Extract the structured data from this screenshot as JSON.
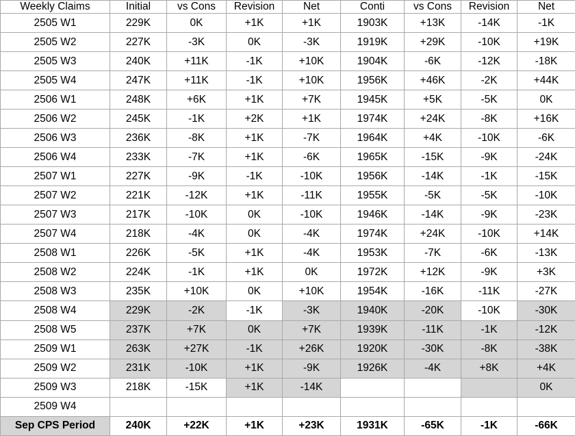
{
  "table": {
    "headers": [
      "Weekly Claims",
      "Initial",
      "vs Cons",
      "Revision",
      "Net",
      "Conti",
      "vs Cons",
      "Revision",
      "Net"
    ],
    "rows": [
      {
        "label": "2505 W1",
        "cells": [
          "229K",
          "0K",
          "+1K",
          "+1K",
          "1903K",
          "+13K",
          "-14K",
          "-1K"
        ]
      },
      {
        "label": "2505 W2",
        "cells": [
          "227K",
          "-3K",
          "0K",
          "-3K",
          "1919K",
          "+29K",
          "-10K",
          "+19K"
        ]
      },
      {
        "label": "2505 W3",
        "cells": [
          "240K",
          "+11K",
          "-1K",
          "+10K",
          "1904K",
          "-6K",
          "-12K",
          "-18K"
        ]
      },
      {
        "label": "2505 W4",
        "cells": [
          "247K",
          "+11K",
          "-1K",
          "+10K",
          "1956K",
          "+46K",
          "-2K",
          "+44K"
        ]
      },
      {
        "label": "2506 W1",
        "cells": [
          "248K",
          "+6K",
          "+1K",
          "+7K",
          "1945K",
          "+5K",
          "-5K",
          "0K"
        ]
      },
      {
        "label": "2506 W2",
        "cells": [
          "245K",
          "-1K",
          "+2K",
          "+1K",
          "1974K",
          "+24K",
          "-8K",
          "+16K"
        ]
      },
      {
        "label": "2506 W3",
        "cells": [
          "236K",
          "-8K",
          "+1K",
          "-7K",
          "1964K",
          "+4K",
          "-10K",
          "-6K"
        ]
      },
      {
        "label": "2506 W4",
        "cells": [
          "233K",
          "-7K",
          "+1K",
          "-6K",
          "1965K",
          "-15K",
          "-9K",
          "-24K"
        ]
      },
      {
        "label": "2507 W1",
        "cells": [
          "227K",
          "-9K",
          "-1K",
          "-10K",
          "1956K",
          "-14K",
          "-1K",
          "-15K"
        ]
      },
      {
        "label": "2507 W2",
        "cells": [
          "221K",
          "-12K",
          "+1K",
          "-11K",
          "1955K",
          "-5K",
          "-5K",
          "-10K"
        ]
      },
      {
        "label": "2507 W3",
        "cells": [
          "217K",
          "-10K",
          "0K",
          "-10K",
          "1946K",
          "-14K",
          "-9K",
          "-23K"
        ]
      },
      {
        "label": "2507 W4",
        "cells": [
          "218K",
          "-4K",
          "0K",
          "-4K",
          "1974K",
          "+24K",
          "-10K",
          "+14K"
        ]
      },
      {
        "label": "2508 W1",
        "cells": [
          "226K",
          "-5K",
          "+1K",
          "-4K",
          "1953K",
          "-7K",
          "-6K",
          "-13K"
        ]
      },
      {
        "label": "2508 W2",
        "cells": [
          "224K",
          "-1K",
          "+1K",
          "0K",
          "1972K",
          "+12K",
          "-9K",
          "+3K"
        ]
      },
      {
        "label": "2508 W3",
        "cells": [
          "235K",
          "+10K",
          "0K",
          "+10K",
          "1954K",
          "-16K",
          "-11K",
          "-27K"
        ]
      },
      {
        "label": "2508 W4",
        "cells": [
          "229K",
          "-2K",
          "-1K",
          "-3K",
          "1940K",
          "-20K",
          "-10K",
          "-30K"
        ],
        "shaded": [
          1,
          1,
          0,
          1,
          1,
          1,
          0,
          1
        ]
      },
      {
        "label": "2508 W5",
        "cells": [
          "237K",
          "+7K",
          "0K",
          "+7K",
          "1939K",
          "-11K",
          "-1K",
          "-12K"
        ],
        "shaded": [
          1,
          1,
          1,
          1,
          1,
          1,
          1,
          1
        ]
      },
      {
        "label": "2509 W1",
        "cells": [
          "263K",
          "+27K",
          "-1K",
          "+26K",
          "1920K",
          "-30K",
          "-8K",
          "-38K"
        ],
        "shaded": [
          1,
          1,
          1,
          1,
          1,
          1,
          1,
          1
        ]
      },
      {
        "label": "2509 W2",
        "cells": [
          "231K",
          "-10K",
          "+1K",
          "-9K",
          "1926K",
          "-4K",
          "+8K",
          "+4K"
        ],
        "shaded": [
          1,
          1,
          1,
          1,
          1,
          1,
          1,
          1
        ]
      },
      {
        "label": "2509 W3",
        "cells": [
          "218K",
          "-15K",
          "+1K",
          "-14K",
          "",
          "",
          "",
          "0K"
        ],
        "shaded": [
          0,
          0,
          1,
          1,
          0,
          0,
          1,
          1
        ]
      },
      {
        "label": "2509 W4",
        "cells": [
          "",
          "",
          "",
          "",
          "",
          "",
          "",
          ""
        ]
      },
      {
        "label": "Sep CPS Period",
        "cells": [
          "240K",
          "+22K",
          "+1K",
          "+23K",
          "1931K",
          "-65K",
          "-1K",
          "-66K"
        ],
        "label_shaded": true,
        "bold": true
      }
    ],
    "colors": {
      "shaded_bg": "#d5d5d5",
      "border": "#a8a8a8",
      "text": "#000000",
      "background": "#ffffff"
    }
  }
}
